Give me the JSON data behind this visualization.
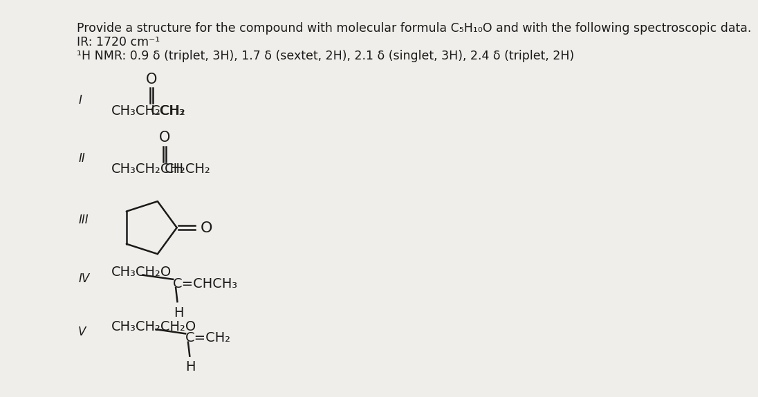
{
  "bg_color": "#f0eeea",
  "title_line1": "Provide a structure for the compound with molecular formula C₅H₁₀O and with the following spectroscopic data.",
  "title_line2": "IR: 1720 cm⁻¹",
  "title_line3": "¹H NMR: 0.9 δ (triplet, 3H), 1.7 δ (sextet, 2H), 2.1 δ (singlet, 3H), 2.4 δ (triplet, 2H)",
  "text_color": "#1a1a1a",
  "font_size_title": 12.5,
  "font_size_label": 12,
  "font_size_struct": 14,
  "line_color": "#1a1a1a",
  "line_width": 1.8
}
